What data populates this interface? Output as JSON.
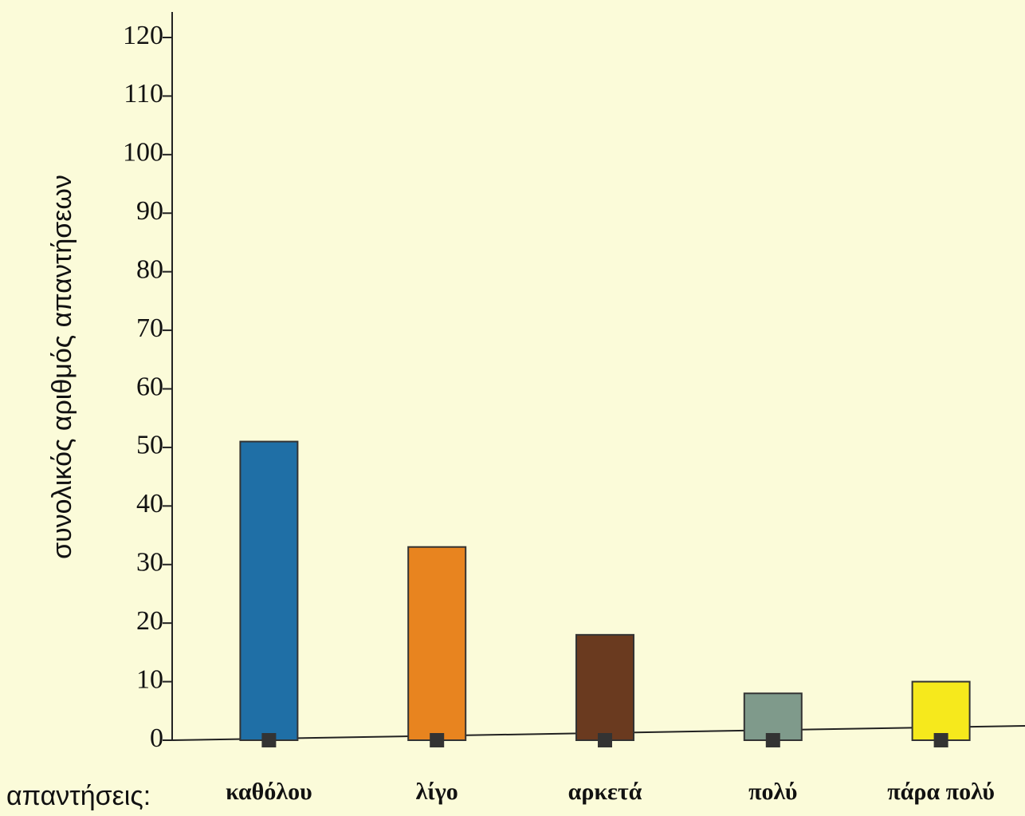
{
  "chart_data": {
    "type": "bar",
    "y_label": "συνολικός αριθμός απαντήσεων",
    "x_label": "απαντήσεις:",
    "categories": [
      "καθόλου",
      "λίγο",
      "αρκετά",
      "πολύ",
      "πάρα πολύ"
    ],
    "values": [
      51,
      33,
      18,
      8,
      10
    ],
    "colors": [
      "#1f6fa6",
      "#e8841f",
      "#6a3a1f",
      "#7f9a8b",
      "#f6e91c"
    ],
    "ylim": [
      0,
      120
    ],
    "yticks": [
      0,
      10,
      20,
      30,
      40,
      50,
      60,
      70,
      80,
      90,
      100,
      110,
      120
    ],
    "grid": false
  }
}
